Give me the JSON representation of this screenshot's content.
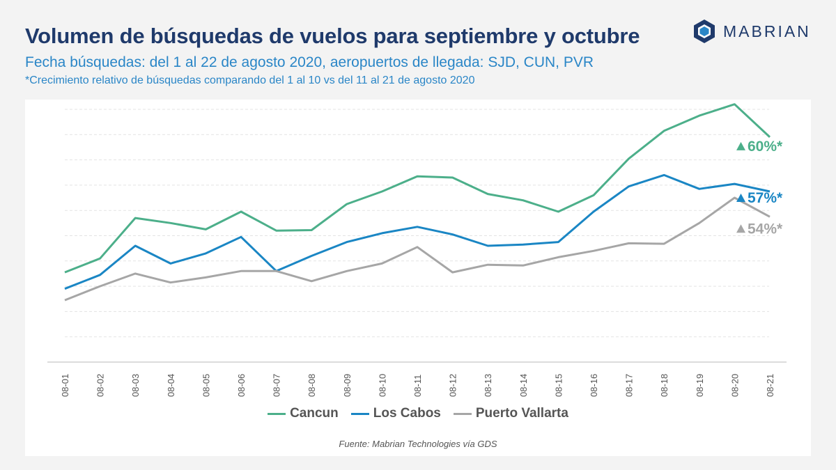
{
  "header": {
    "title": "Volumen de búsquedas de vuelos para septiembre y octubre",
    "subtitle": "Fecha búsquedas: del 1 al 22 de agosto 2020, aeropuertos de llegada: SJD, CUN, PVR",
    "note": "*Crecimiento relativo de búsquedas comparando del 1 al 10 vs del 11 al 21 de agosto 2020"
  },
  "brand": {
    "name": "MABRIAN",
    "icon": "hexagon-logo-icon",
    "color": "#1f3a6b"
  },
  "source": "Fuente: Mabrian Technologies vía GDS",
  "chart_data": {
    "type": "line",
    "x": [
      "08-01",
      "08-02",
      "08-03",
      "08-04",
      "08-05",
      "08-06",
      "08-07",
      "08-08",
      "08-09",
      "08-10",
      "08-11",
      "08-12",
      "08-13",
      "08-14",
      "08-15",
      "08-16",
      "08-17",
      "08-18",
      "08-19",
      "08-20",
      "08-21"
    ],
    "ylim": [
      0,
      10
    ],
    "grid": true,
    "legend": "bottom",
    "series": [
      {
        "name": "Cancun",
        "color": "#4caf8a",
        "values": [
          3.55,
          4.1,
          5.7,
          5.5,
          5.25,
          5.95,
          5.2,
          5.22,
          6.25,
          6.75,
          7.35,
          7.3,
          6.65,
          6.4,
          5.95,
          6.6,
          8.05,
          9.15,
          9.75,
          10.2,
          8.9
        ],
        "annotation": "60%*"
      },
      {
        "name": "Los Cabos",
        "color": "#1a86c4",
        "values": [
          2.9,
          3.45,
          4.6,
          3.9,
          4.3,
          4.95,
          3.6,
          4.2,
          4.75,
          5.1,
          5.35,
          5.05,
          4.6,
          4.65,
          4.75,
          5.95,
          6.95,
          7.4,
          6.85,
          7.05,
          6.75
        ],
        "annotation": "57%*"
      },
      {
        "name": "Puerto Vallarta",
        "color": "#a6a6a6",
        "values": [
          2.45,
          3.0,
          3.5,
          3.15,
          3.35,
          3.6,
          3.6,
          3.2,
          3.6,
          3.9,
          4.55,
          3.55,
          3.85,
          3.82,
          4.15,
          4.4,
          4.7,
          4.68,
          5.5,
          6.5,
          5.75
        ],
        "annotation": "54%*"
      }
    ]
  }
}
